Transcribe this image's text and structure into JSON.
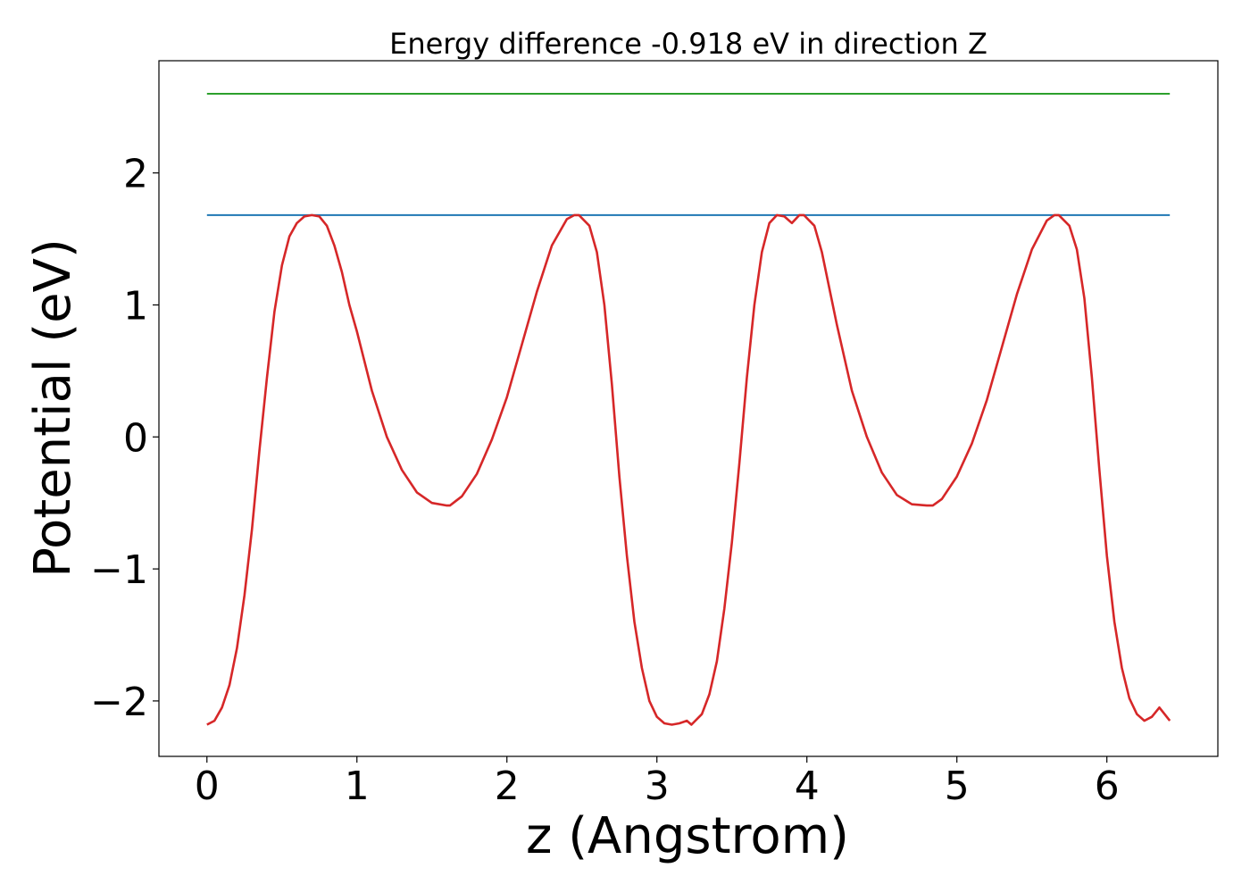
{
  "chart_data": {
    "type": "line",
    "title": "Energy difference -0.918 eV in direction Z",
    "xlabel": "z (Angstrom)",
    "ylabel": "Potential (eV)",
    "xlim": [
      -0.32,
      6.74
    ],
    "ylim": [
      -2.42,
      2.85
    ],
    "xticks": [
      0,
      1,
      2,
      3,
      4,
      5,
      6
    ],
    "yticks": [
      -2,
      -1,
      0,
      1,
      2
    ],
    "xtick_labels": [
      "0",
      "1",
      "2",
      "3",
      "4",
      "5",
      "6"
    ],
    "ytick_labels": [
      "−2",
      "−1",
      "0",
      "1",
      "2"
    ],
    "grid": false,
    "legend": "none",
    "series": [
      {
        "color": "#2ca02c",
        "x": [
          0,
          6.42
        ],
        "y": [
          2.6,
          2.6
        ]
      },
      {
        "color": "#1f77b4",
        "x": [
          0,
          6.42
        ],
        "y": [
          1.68,
          1.68
        ]
      },
      {
        "color": "#d62728",
        "x": [
          0,
          0.05,
          0.1,
          0.15,
          0.2,
          0.25,
          0.3,
          0.35,
          0.4,
          0.45,
          0.5,
          0.55,
          0.6,
          0.65,
          0.7,
          0.75,
          0.8,
          0.85,
          0.9,
          0.95,
          1.0,
          1.1,
          1.2,
          1.3,
          1.4,
          1.5,
          1.6,
          1.62,
          1.7,
          1.8,
          1.9,
          2.0,
          2.1,
          2.2,
          2.3,
          2.4,
          2.45,
          2.48,
          2.55,
          2.6,
          2.65,
          2.7,
          2.75,
          2.8,
          2.85,
          2.9,
          2.95,
          3.0,
          3.05,
          3.1,
          3.15,
          3.2,
          3.23,
          3.3,
          3.35,
          3.4,
          3.45,
          3.5,
          3.55,
          3.6,
          3.65,
          3.7,
          3.75,
          3.8,
          3.85,
          3.9,
          3.95,
          3.98,
          4.05,
          4.1,
          4.2,
          4.3,
          4.4,
          4.5,
          4.6,
          4.7,
          4.8,
          4.84,
          4.9,
          5.0,
          5.1,
          5.2,
          5.3,
          5.4,
          5.5,
          5.6,
          5.65,
          5.68,
          5.75,
          5.8,
          5.85,
          5.9,
          5.95,
          6.0,
          6.05,
          6.1,
          6.15,
          6.2,
          6.25,
          6.3,
          6.35,
          6.42
        ],
        "y": [
          -2.18,
          -2.15,
          -2.05,
          -1.88,
          -1.6,
          -1.2,
          -0.7,
          -0.1,
          0.45,
          0.95,
          1.3,
          1.52,
          1.62,
          1.67,
          1.68,
          1.67,
          1.6,
          1.45,
          1.25,
          1.0,
          0.8,
          0.35,
          0.0,
          -0.25,
          -0.42,
          -0.5,
          -0.52,
          -0.52,
          -0.45,
          -0.28,
          -0.02,
          0.3,
          0.7,
          1.1,
          1.45,
          1.65,
          1.68,
          1.68,
          1.6,
          1.4,
          1.0,
          0.4,
          -0.3,
          -0.9,
          -1.4,
          -1.75,
          -2.0,
          -2.12,
          -2.17,
          -2.18,
          -2.17,
          -2.15,
          -2.18,
          -2.1,
          -1.95,
          -1.7,
          -1.3,
          -0.8,
          -0.2,
          0.45,
          1.0,
          1.4,
          1.62,
          1.68,
          1.67,
          1.62,
          1.68,
          1.68,
          1.6,
          1.4,
          0.85,
          0.35,
          0.0,
          -0.27,
          -0.44,
          -0.51,
          -0.52,
          -0.52,
          -0.47,
          -0.3,
          -0.05,
          0.28,
          0.68,
          1.08,
          1.42,
          1.64,
          1.68,
          1.68,
          1.6,
          1.42,
          1.05,
          0.45,
          -0.25,
          -0.9,
          -1.4,
          -1.75,
          -1.98,
          -2.1,
          -2.15,
          -2.12,
          -2.05,
          -2.15
        ]
      }
    ]
  }
}
